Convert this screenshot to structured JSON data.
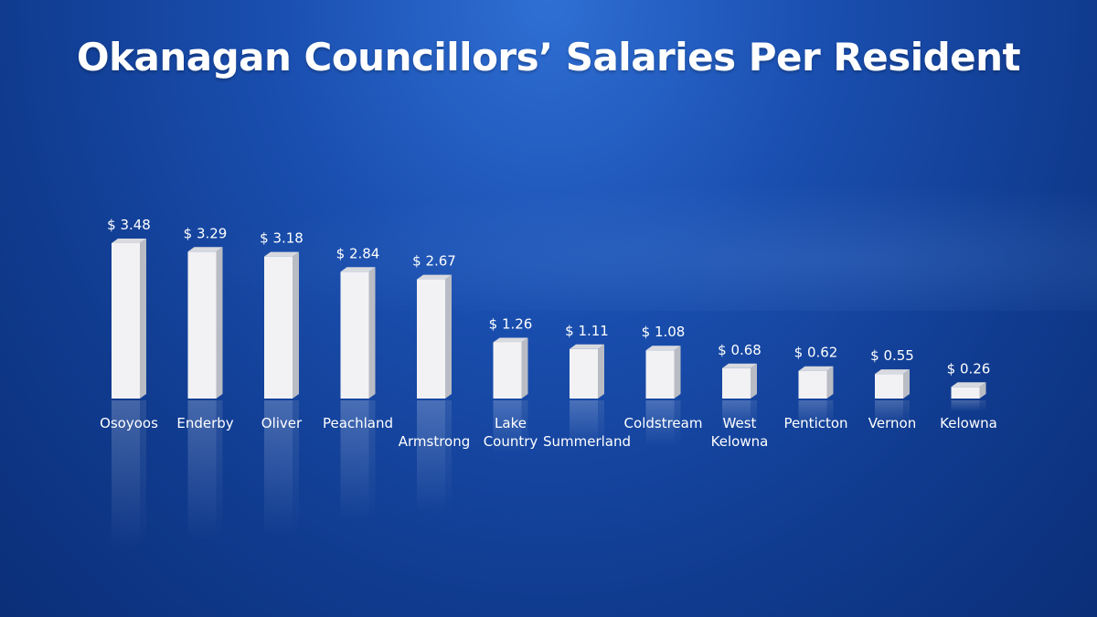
{
  "chart_data": {
    "type": "bar",
    "title": "Okanagan Councillors’ Salaries Per Resident",
    "categories": [
      "Osoyoos",
      "Enderby",
      "Oliver",
      "Peachland",
      "Armstrong",
      "Lake Country",
      "Summerland",
      "Coldstream",
      "West Kelowna",
      "Penticton",
      "Vernon",
      "Kelowna"
    ],
    "category_lines": [
      [
        "Osoyoos"
      ],
      [
        "Enderby"
      ],
      [
        "Oliver"
      ],
      [
        "Peachland"
      ],
      [
        "Armstrong"
      ],
      [
        "Lake",
        "Country"
      ],
      [
        "Summerland"
      ],
      [
        "Coldstream"
      ],
      [
        "West",
        "Kelowna"
      ],
      [
        "Penticton"
      ],
      [
        "Vernon"
      ],
      [
        "Kelowna"
      ]
    ],
    "values": [
      3.48,
      3.29,
      3.18,
      2.84,
      2.67,
      1.26,
      1.11,
      1.08,
      0.68,
      0.62,
      0.55,
      0.26
    ],
    "value_labels": [
      "$ 3.48",
      "$ 3.29",
      "$ 3.18",
      "$ 2.84",
      "$ 2.67",
      "$ 1.26",
      "$ 1.11",
      "$ 1.08",
      "$ 0.68",
      "$ 0.62",
      "$ 0.55",
      "$ 0.26"
    ],
    "label_drop": [
      0,
      0,
      0,
      0,
      1,
      0,
      1,
      0,
      0,
      0,
      0,
      0
    ],
    "ylim": [
      0,
      3.6
    ],
    "grid": false,
    "legend": "none",
    "colors": {
      "bar_front": "#f2f2f4",
      "bar_side": "#b9bcc4",
      "bar_top": "#d8dadf"
    }
  }
}
